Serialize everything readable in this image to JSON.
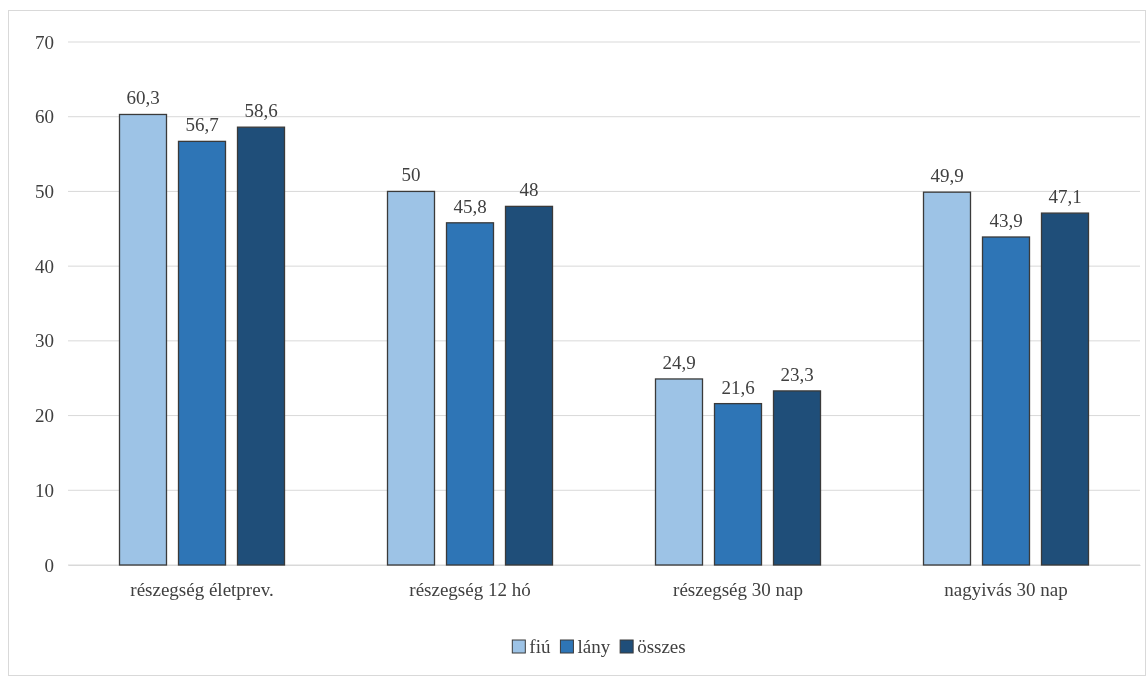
{
  "chart_data": {
    "type": "bar",
    "categories": [
      "részegség életprev.",
      "részegség 12 hó",
      "részegség 30 nap",
      "nagyivás 30 nap"
    ],
    "series": [
      {
        "name": "fiú",
        "color": "#9dc3e6",
        "values": [
          60.3,
          50,
          24.9,
          49.9
        ],
        "value_labels": [
          "60,3",
          "50",
          "24,9",
          "49,9"
        ]
      },
      {
        "name": "lány",
        "color": "#2e75b6",
        "values": [
          56.7,
          45.8,
          21.6,
          43.9
        ],
        "value_labels": [
          "56,7",
          "45,8",
          "21,6",
          "43,9"
        ]
      },
      {
        "name": "összes",
        "color": "#1f4e79",
        "values": [
          58.6,
          48,
          23.3,
          47.1
        ],
        "value_labels": [
          "58,6",
          "48",
          "23,3",
          "47,1"
        ]
      }
    ],
    "ylim": [
      0,
      70
    ],
    "yticks": [
      0,
      10,
      20,
      30,
      40,
      50,
      60,
      70
    ],
    "grid": "y",
    "legend": "bottom"
  }
}
